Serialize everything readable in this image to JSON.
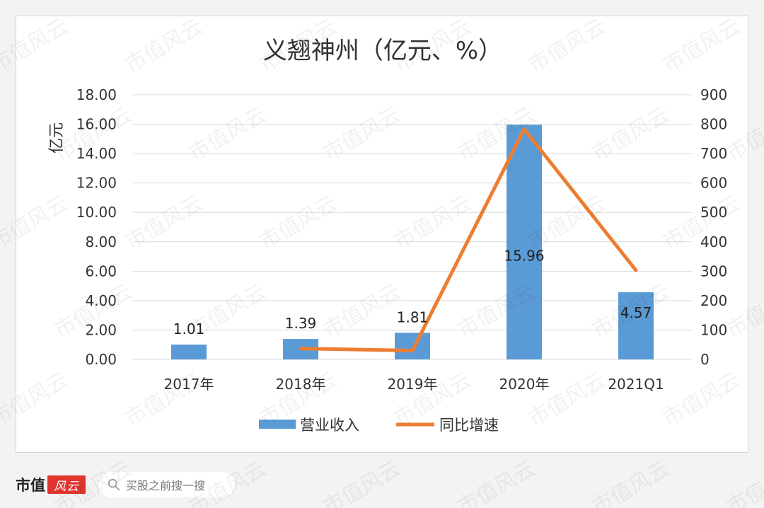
{
  "chart_data": {
    "type": "bar+line",
    "title": "义翘神州（亿元、%）",
    "categories": [
      "2017年",
      "2018年",
      "2019年",
      "2020年",
      "2021Q1"
    ],
    "series": [
      {
        "name": "营业收入",
        "type": "bar",
        "axis": "left",
        "values": [
          1.01,
          1.39,
          1.81,
          15.96,
          4.57
        ],
        "color": "#5b9bd5"
      },
      {
        "name": "同比增速",
        "type": "line",
        "axis": "right",
        "values": [
          null,
          37,
          30,
          783,
          303
        ],
        "color": "#ed7d31"
      }
    ],
    "data_labels": [
      "1.01",
      "1.39",
      "1.81",
      "15.96",
      "4.57"
    ],
    "ylabel": "亿元",
    "ylim": [
      0,
      18
    ],
    "yticks": [
      "0.00",
      "2.00",
      "4.00",
      "6.00",
      "8.00",
      "10.00",
      "12.00",
      "14.00",
      "16.00",
      "18.00"
    ],
    "y2lim": [
      0,
      900
    ],
    "y2ticks": [
      "0",
      "100",
      "200",
      "300",
      "400",
      "500",
      "600",
      "700",
      "800",
      "900"
    ],
    "grid": true,
    "legend_position": "bottom"
  },
  "footer": {
    "brand_text": "市值",
    "brand_logo_text": "风云",
    "search_placeholder": "买股之前搜一搜"
  },
  "watermark_text": "市值风云"
}
